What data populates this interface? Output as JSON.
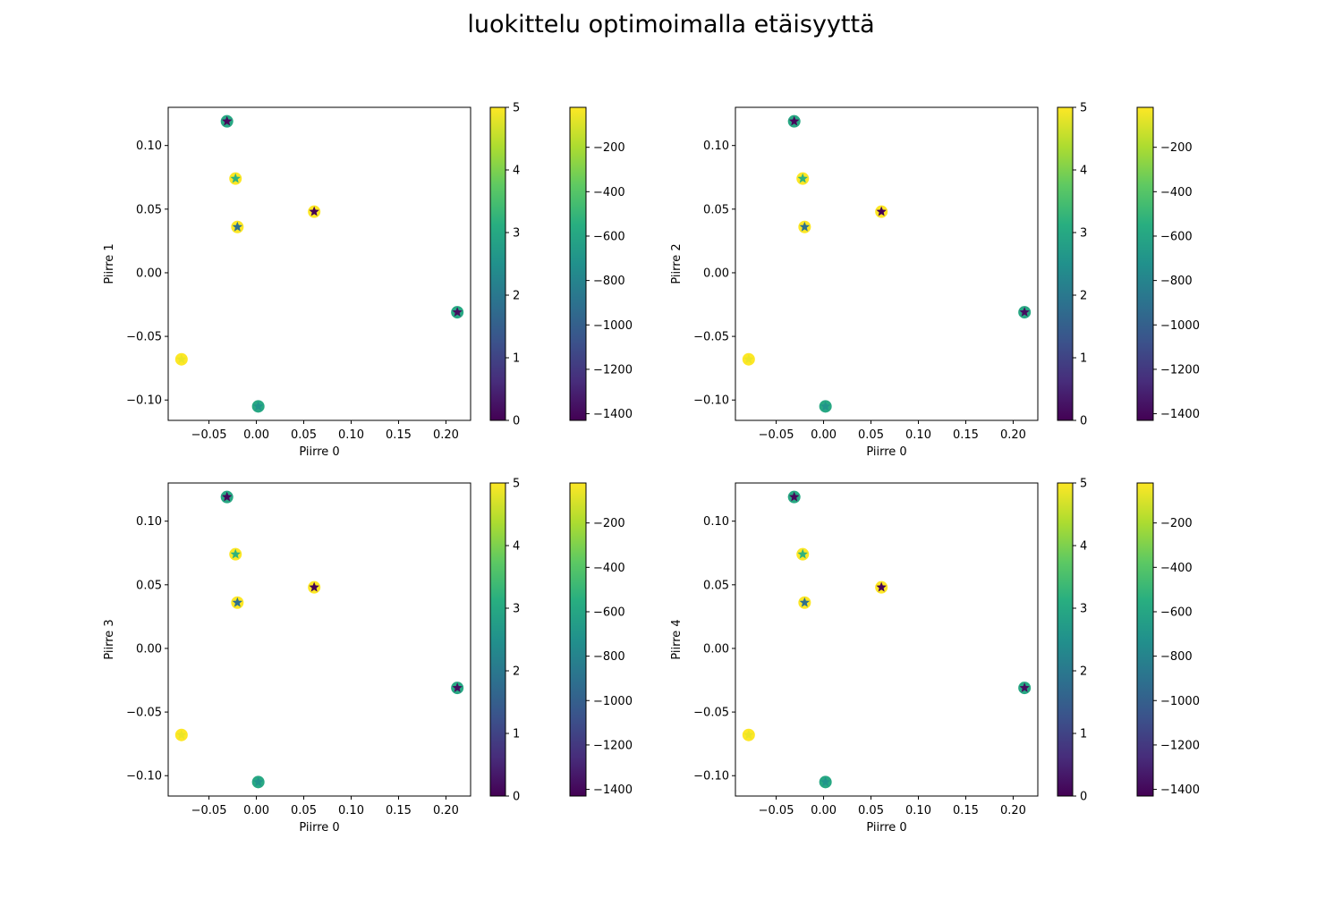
{
  "title": "luokittelu optimoimalla etäisyyttä",
  "chart_data": {
    "type": "scatter",
    "suptitle": "luokittelu optimoimalla etäisyyttä",
    "colormap": "viridis",
    "points": [
      {
        "x": -0.079,
        "y": -0.068,
        "outer": 5,
        "inner": -60
      },
      {
        "x": -0.031,
        "y": 0.119,
        "outer": 3,
        "inner": -1400
      },
      {
        "x": -0.022,
        "y": 0.074,
        "outer": 5,
        "inner": -520
      },
      {
        "x": -0.02,
        "y": 0.036,
        "outer": 5,
        "inner": -920
      },
      {
        "x": 0.002,
        "y": -0.105,
        "outer": 3,
        "inner": -700
      },
      {
        "x": 0.061,
        "y": 0.048,
        "outer": 5,
        "inner": -1430
      },
      {
        "x": 0.212,
        "y": -0.031,
        "outer": 3,
        "inner": -1380
      }
    ],
    "subplots": [
      {
        "xlabel": "Piirre 0",
        "ylabel": "Piirre 1"
      },
      {
        "xlabel": "Piirre 0",
        "ylabel": "Piirre 2"
      },
      {
        "xlabel": "Piirre 0",
        "ylabel": "Piirre 3"
      },
      {
        "xlabel": "Piirre 0",
        "ylabel": "Piirre 4"
      }
    ],
    "xlim": [
      -0.093,
      0.226
    ],
    "ylim": [
      -0.116,
      0.13
    ],
    "xticks": [
      -0.05,
      0.0,
      0.05,
      0.1,
      0.15,
      0.2
    ],
    "xtick_labels": [
      "−0.05",
      "0.00",
      "0.05",
      "0.10",
      "0.15",
      "0.20"
    ],
    "yticks": [
      -0.1,
      -0.05,
      0.0,
      0.05,
      0.1
    ],
    "ytick_labels": [
      "−0.10",
      "−0.05",
      "0.00",
      "0.05",
      "0.10"
    ],
    "colorbar_outer": {
      "range": [
        0,
        5
      ],
      "ticks": [
        0,
        1,
        2,
        3,
        4,
        5
      ],
      "tick_labels": [
        "0",
        "1",
        "2",
        "3",
        "4",
        "5"
      ]
    },
    "colorbar_inner": {
      "range": [
        -1430,
        -20
      ],
      "ticks": [
        -200,
        -400,
        -600,
        -800,
        -1000,
        -1200,
        -1400
      ],
      "tick_labels": [
        "−200",
        "−400",
        "−600",
        "−800",
        "−1000",
        "−1200",
        "−1400"
      ]
    },
    "grid": false
  }
}
